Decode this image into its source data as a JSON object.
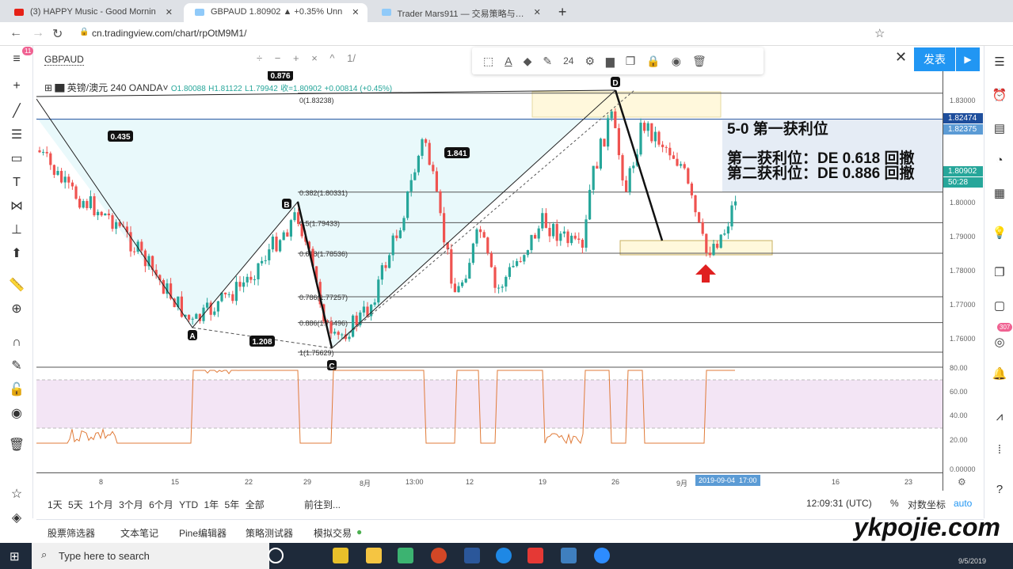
{
  "browser": {
    "tabs": [
      {
        "label": "(3) HAPPY Music - Good Mornin",
        "color": "#e62117"
      },
      {
        "label": "GBPAUD 1.80902 ▲ +0.35% Unn",
        "color": "#2196f3"
      },
      {
        "label": "Trader Mars911 — 交易策略与…",
        "color": "#2196f3"
      }
    ],
    "new_tab": "+",
    "url": "cn.tradingview.com/chart/rpOtM9M1/"
  },
  "header": {
    "symbol_search": "GBPAUD",
    "notification_count": "11",
    "zoom_controls": [
      "÷",
      "−",
      "+",
      "×",
      "^",
      "1/"
    ]
  },
  "draw_toolbar": {
    "font_size": "24",
    "tools": [
      "fib-template-icon",
      "text-color-icon",
      "fill-icon",
      "line-color-icon",
      "settings-icon",
      "layer-icon",
      "clone-icon",
      "lock-icon",
      "visibility-icon",
      "trash-icon"
    ]
  },
  "publish_label": "发表",
  "legend": {
    "title": "英镑/澳元",
    "interval": "240",
    "exchange": "OANDA",
    "open": "O1.80088",
    "high": "H1.81122",
    "low": "L1.79942",
    "close": "收=1.80902",
    "change": "+0.00814 (+0.45%)"
  },
  "pattern": {
    "points": [
      "A",
      "B",
      "C",
      "D"
    ],
    "ratios": {
      "xb": "0.876",
      "xa_b": "0.435",
      "bc_d": "1.841",
      "ac": "1.208"
    }
  },
  "fib_levels": [
    {
      "label": "0(1.83238)",
      "price": 1.83238
    },
    {
      "label": "0.382(1.80331)",
      "price": 1.80331
    },
    {
      "label": "0.5(1.79433)",
      "price": 1.79433
    },
    {
      "label": "0.618(1.78536)",
      "price": 1.78536
    },
    {
      "label": "0.786(1.77257)",
      "price": 1.77257
    },
    {
      "label": "0.886(1.76496)",
      "price": 1.76496
    },
    {
      "label": "1(1.75629)",
      "price": 1.75629
    }
  ],
  "note": {
    "title": "5-0 第一获利位",
    "line1": "第一获利位：DE 0.618 回撤",
    "line2": "第二获利位：DE 0.886 回撤"
  },
  "price_axis": {
    "ticks": [
      "1.83000",
      "1.80000",
      "1.79000",
      "1.78000",
      "1.77000",
      "1.76000"
    ],
    "tag_blue": "1.82474",
    "tag_light": "1.82375",
    "tag_last": "1.80902",
    "countdown": "50:28"
  },
  "rsi_axis": {
    "ticks": [
      "80.00",
      "60.00",
      "40.00",
      "20.00",
      "0.00000"
    ]
  },
  "time_axis": {
    "ticks": [
      "8",
      "15",
      "22",
      "29",
      "8月",
      "13:00",
      "12",
      "19",
      "26",
      "9月",
      "16",
      "23"
    ],
    "crosshair": "2019-09-04  17:00"
  },
  "range_bar": {
    "ranges": [
      "1天",
      "5天",
      "1个月",
      "3个月",
      "6个月",
      "YTD",
      "1年",
      "5年",
      "全部"
    ],
    "goto": "前往到...",
    "clock": "12:09:31 (UTC)",
    "percent": "%",
    "log": "对数坐标",
    "auto": "auto"
  },
  "bottom_tabs": [
    "股票筛选器",
    "文本笔记",
    "Pine编辑器",
    "策略测试器",
    "模拟交易"
  ],
  "taskbar": {
    "search_placeholder": "Type here to search",
    "date": "9/5/2019"
  },
  "alerts_badge": "307",
  "colors": {
    "up": "#26a69a",
    "down": "#ef5350",
    "accent": "#2196f3",
    "pattern_fill": "#e0f7fa",
    "rsi_band": "#f3e5f5"
  },
  "watermark": "ykpojie.com"
}
